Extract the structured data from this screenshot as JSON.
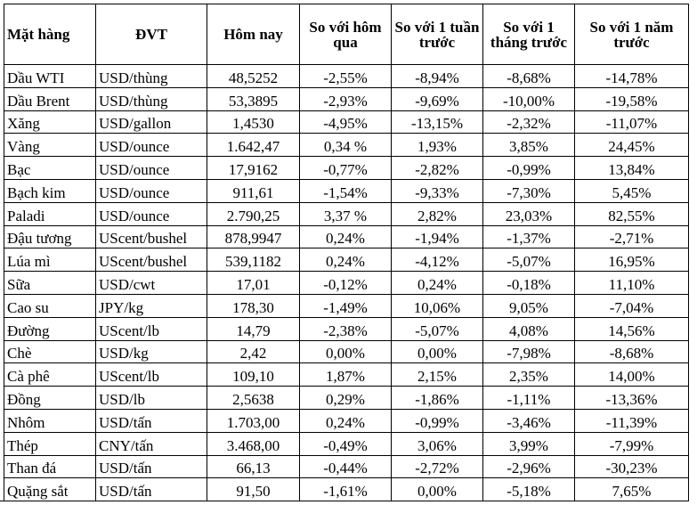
{
  "headers": {
    "item": "Mặt hàng",
    "unit": "ĐVT",
    "today": "Hôm nay",
    "vs_yesterday": "So với hôm qua",
    "vs_week": "So với 1 tuần trước",
    "vs_month": "So với 1 tháng trước",
    "vs_year": "So với 1 năm trước"
  },
  "rows": [
    [
      "Dầu WTI",
      "USD/thùng",
      "48,5252",
      "-2,55%",
      "-8,94%",
      "-8,68%",
      "-14,78%"
    ],
    [
      "Dầu Brent",
      "USD/thùng",
      "53,3895",
      "-2,93%",
      "-9,69%",
      "-10,00%",
      "-19,58%"
    ],
    [
      "Xăng",
      "USD/gallon",
      "1,4530",
      "-4,95%",
      "-13,15%",
      "-2,32%",
      "-11,07%"
    ],
    [
      "Vàng",
      "USD/ounce",
      "1.642,47",
      "0,34 %",
      "1,93%",
      "3,85%",
      "24,45%"
    ],
    [
      "Bạc",
      "USD/ounce",
      "17,9162",
      "-0,77%",
      "-2,82%",
      "-0,99%",
      "13,84%"
    ],
    [
      "Bạch kim",
      "USD/ounce",
      "911,61",
      "-1,54%",
      "-9,33%",
      "-7,30%",
      "5,45%"
    ],
    [
      "Paladi",
      "USD/ounce",
      "2.790,25",
      "3,37 %",
      "2,82%",
      "23,03%",
      "82,55%"
    ],
    [
      "Đậu tương",
      "UScent/bushel",
      "878,9947",
      "0,24%",
      "-1,94%",
      "-1,37%",
      "-2,71%"
    ],
    [
      "Lúa mì",
      "UScent/bushel",
      "539,1182",
      "0,24%",
      "-4,12%",
      "-5,07%",
      "16,95%"
    ],
    [
      "Sữa",
      "USD/cwt",
      "17,01",
      "-0,12%",
      "0,24%",
      "-0,18%",
      "11,10%"
    ],
    [
      "Cao su",
      "JPY/kg",
      "178,30",
      "-1,49%",
      "10,06%",
      "9,05%",
      "-7,04%"
    ],
    [
      "Đường",
      "UScent/lb",
      "14,79",
      "-2,38%",
      "-5,07%",
      "4,08%",
      "14,56%"
    ],
    [
      "Chè",
      "USD/kg",
      "2,42",
      "0,00%",
      "0,00%",
      "-7,98%",
      "-8,68%"
    ],
    [
      "Cà phê",
      "UScent/lb",
      "109,10",
      "1,87%",
      "2,15%",
      "2,35%",
      "14,00%"
    ],
    [
      "Đồng",
      "USD/lb",
      "2,5638",
      "0,29%",
      "-1,86%",
      "-1,11%",
      "-13,36%"
    ],
    [
      "Nhôm",
      "USD/tấn",
      "1.703,00",
      "0,24%",
      "-0,99%",
      "-3,46%",
      "-11,39%"
    ],
    [
      "Thép",
      "CNY/tấn",
      "3.468,00",
      "-0,49%",
      "3,06%",
      "3,99%",
      "-7,99%"
    ],
    [
      "Than đá",
      "USD/tấn",
      "66,13",
      "-0,44%",
      "-2,72%",
      "-2,96%",
      "-30,23%"
    ],
    [
      "Quặng sắt",
      "USD/tấn",
      "91,50",
      "-1,61%",
      "0,00%",
      "-5,18%",
      "7,65%"
    ]
  ]
}
